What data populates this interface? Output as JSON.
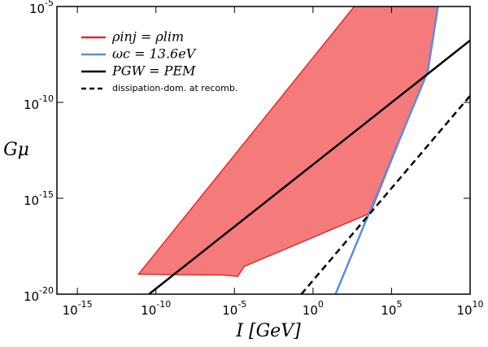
{
  "chart_data": {
    "type": "line",
    "log_x": true,
    "log_y": true,
    "legend": "upper left",
    "xlabel": "I [GeV]",
    "ylabel": "Gμ",
    "xlim": [
      5e-17,
      10000000000.0
    ],
    "ylim": [
      1e-20,
      1e-05
    ],
    "xticks": [
      {
        "value": 1e-15,
        "label": "10-15"
      },
      {
        "value": 1e-10,
        "label": "10-10"
      },
      {
        "value": 1e-05,
        "label": "10-5"
      },
      {
        "value": 1,
        "label": "100"
      },
      {
        "value": 100000.0,
        "label": "105"
      },
      {
        "value": 10000000000.0,
        "label": "1010"
      }
    ],
    "yticks": [
      {
        "value": 1e-20,
        "label": "10-20"
      },
      {
        "value": 1e-15,
        "label": "10-15"
      },
      {
        "value": 1e-10,
        "label": "10-10"
      },
      {
        "value": 1e-05,
        "label": "10-5"
      }
    ],
    "series": [
      {
        "name": "ρinj = ρlim",
        "color": "#e8282b",
        "fill": "#f57b7b",
        "filled": true,
        "x": [
          7.8e-12,
          420,
          90000000.0,
          19000000.0,
          4500,
          4.2e-05,
          1.6e-05,
          2.1e-06,
          7.8e-12
        ],
        "values": [
          1.1e-19,
          1e-05,
          1e-05,
          4e-09,
          1.7e-16,
          2.8e-19,
          8.5e-20,
          1e-19,
          1.1e-19
        ]
      },
      {
        "name": "ωc = 13.6eV",
        "color": "#5b8de0",
        "x": [
          27,
          20000000.0,
          90000000.0
        ],
        "values": [
          1e-20,
          4e-09,
          1e-05
        ]
      },
      {
        "name": "PGW = PEM",
        "color": "#000000",
        "x": [
          3.6e-11,
          10000000000.0
        ],
        "values": [
          1e-20,
          1.7e-07
        ]
      },
      {
        "name": "dissipation-dom. at recomb.",
        "color": "#000000",
        "dashed": true,
        "x": [
          0.18,
          10000000000.0
        ],
        "values": [
          1e-20,
          2.2e-10
        ]
      }
    ]
  }
}
